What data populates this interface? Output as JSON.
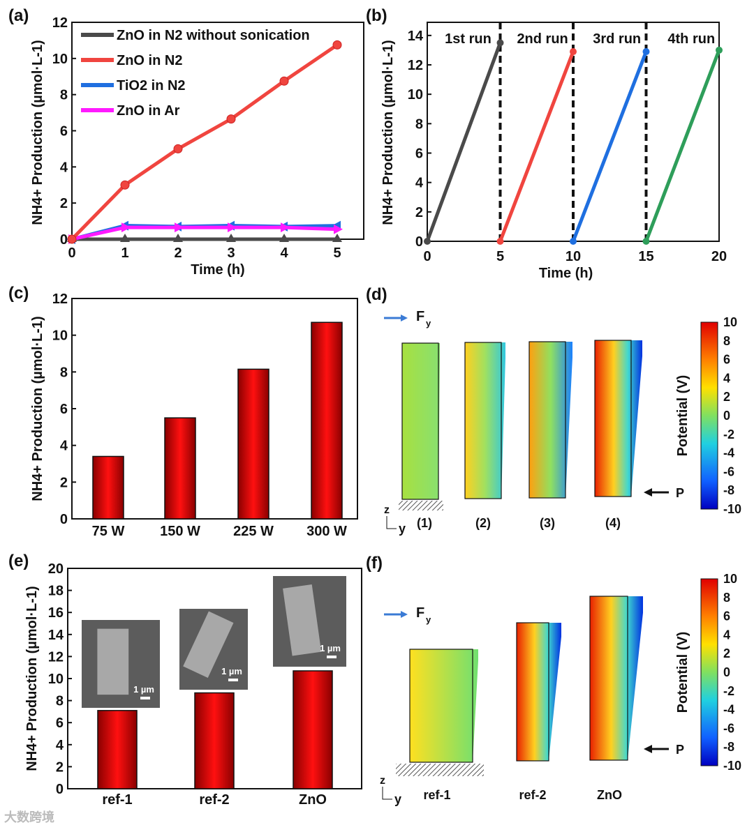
{
  "chart_data": [
    {
      "panel": "(a)",
      "type": "line",
      "xlabel": "Time (h)",
      "ylabel": "NH4+ Production (µmol·L-1)",
      "xlim": [
        0,
        5.5
      ],
      "ylim": [
        0,
        12
      ],
      "xticks": [
        "0",
        "1",
        "2",
        "3",
        "4",
        "5"
      ],
      "yticks": [
        "0",
        "2",
        "4",
        "6",
        "8",
        "10",
        "12"
      ],
      "x": [
        0,
        1,
        2,
        3,
        4,
        5
      ],
      "legend_position": "top-left",
      "series": [
        {
          "name": "ZnO in N2 without sonication",
          "color": "#4a4a4a",
          "marker": "triangle-up",
          "values": [
            0,
            0,
            0,
            0,
            0,
            0
          ]
        },
        {
          "name": "ZnO in N2",
          "color": "#f0453f",
          "marker": "circle",
          "values": [
            0,
            3.0,
            5.0,
            6.65,
            8.75,
            10.75
          ]
        },
        {
          "name": "TiO2 in N2",
          "color": "#1f6fe0",
          "marker": "triangle-left",
          "values": [
            0,
            0.75,
            0.7,
            0.75,
            0.7,
            0.75
          ]
        },
        {
          "name": "ZnO in Ar",
          "color": "#ff1aff",
          "marker": "triangle-right",
          "values": [
            0,
            0.65,
            0.65,
            0.65,
            0.65,
            0.55
          ]
        }
      ]
    },
    {
      "panel": "(b)",
      "type": "line",
      "xlabel": "Time (h)",
      "ylabel": "NH4+ Production (µmol·L-1)",
      "xlim": [
        0,
        20
      ],
      "ylim": [
        0,
        14
      ],
      "xticks": [
        "0",
        "5",
        "10",
        "15",
        "20"
      ],
      "yticks": [
        "0",
        "2",
        "4",
        "6",
        "8",
        "10",
        "12",
        "14"
      ],
      "run_labels": [
        "1st run",
        "2nd run",
        "3rd run",
        "4th run"
      ],
      "separators": [
        5,
        10,
        15
      ],
      "series": [
        {
          "name": "1st run",
          "color": "#4a4a4a",
          "x": [
            0,
            5
          ],
          "values": [
            0,
            13.5
          ]
        },
        {
          "name": "2nd run",
          "color": "#f0453f",
          "x": [
            5,
            10
          ],
          "values": [
            0,
            12.9
          ]
        },
        {
          "name": "3rd run",
          "color": "#1f6fe0",
          "x": [
            10,
            15
          ],
          "values": [
            0,
            12.9
          ]
        },
        {
          "name": "4th run",
          "color": "#2e9e5a",
          "x": [
            15,
            20
          ],
          "values": [
            0,
            13.0
          ]
        }
      ]
    },
    {
      "panel": "(c)",
      "type": "bar",
      "ylabel": "NH4+ Production (µmol·L-1)",
      "ylim": [
        0,
        12
      ],
      "yticks": [
        "0",
        "2",
        "4",
        "6",
        "8",
        "10",
        "12"
      ],
      "categories": [
        "75 W",
        "150 W",
        "225 W",
        "300 W"
      ],
      "values": [
        3.4,
        5.5,
        8.15,
        10.7
      ]
    },
    {
      "panel": "(e)",
      "type": "bar",
      "ylabel": "NH4+ Production (µmol·L-1)",
      "ylim": [
        0,
        20
      ],
      "yticks": [
        "0",
        "2",
        "4",
        "6",
        "8",
        "10",
        "12",
        "14",
        "16",
        "18",
        "20"
      ],
      "categories": [
        "ref-1",
        "ref-2",
        "ZnO"
      ],
      "values": [
        7.1,
        8.7,
        10.7
      ],
      "inset_scale_label": "1 µm"
    }
  ],
  "panel_labels": [
    "(a)",
    "(b)",
    "(c)",
    "(d)",
    "(e)",
    "(f)"
  ],
  "simulation": {
    "force_label": "F",
    "force_sub": "y",
    "pressure_label": "P",
    "axis_z": "z",
    "axis_y": "y",
    "colorbar_title": "Potential (V)",
    "colorbar_ticks": [
      "10",
      "8",
      "6",
      "4",
      "2",
      "0",
      "-2",
      "-4",
      "-6",
      "-8",
      "-10"
    ],
    "d_labels": [
      "(1)",
      "(2)",
      "(3)",
      "(4)"
    ],
    "f_labels": [
      "ref-1",
      "ref-2",
      "ZnO"
    ]
  },
  "watermark": "大数跨境"
}
